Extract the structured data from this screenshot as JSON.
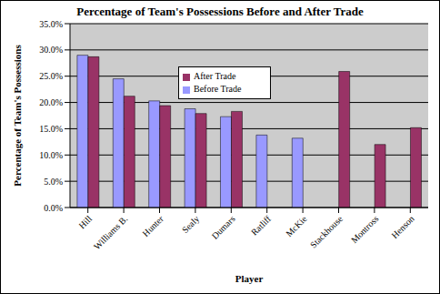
{
  "chart_data": {
    "type": "bar",
    "title": "Percentage of Team's Possessions Before and After Trade",
    "x_label": "Player",
    "y_label": "Percentage of Team's Possessions",
    "categories": [
      "Hill",
      "Williams B.",
      "Hunter",
      "Sealy",
      "Dumars",
      "Ratliff",
      "McKie",
      "Stackhouse",
      "Montross",
      "Henson"
    ],
    "series": [
      {
        "name": "Before Trade",
        "color": "#9999ff",
        "values": [
          29.0,
          24.5,
          20.3,
          18.8,
          17.3,
          13.8,
          13.2,
          null,
          null,
          null
        ]
      },
      {
        "name": "After Trade",
        "color": "#993366",
        "values": [
          28.7,
          21.2,
          19.4,
          17.9,
          18.3,
          null,
          null,
          25.9,
          12.0,
          15.2
        ]
      }
    ],
    "ylim": [
      0,
      35
    ],
    "yticks": [
      {
        "value": 0,
        "label": "0.0%"
      },
      {
        "value": 5,
        "label": "5.0%"
      },
      {
        "value": 10,
        "label": "10.0%"
      },
      {
        "value": 15,
        "label": "15.0%"
      },
      {
        "value": 20,
        "label": "20.0%"
      },
      {
        "value": 25,
        "label": "25.0%"
      },
      {
        "value": 30,
        "label": "30.0%"
      },
      {
        "value": 35,
        "label": "35.0%"
      }
    ],
    "grid": true,
    "legend": "top"
  }
}
